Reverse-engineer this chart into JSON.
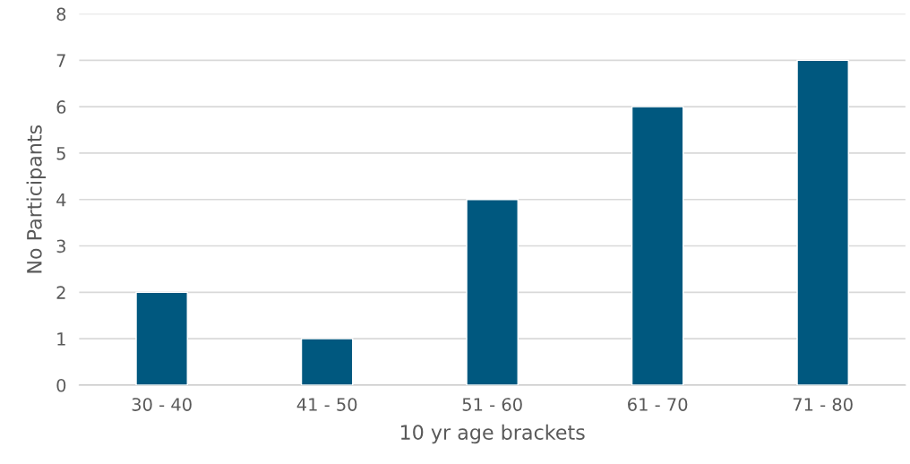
{
  "chart_data": {
    "type": "bar",
    "xlabel": "10 yr age brackets",
    "ylabel": "No Participants",
    "categories": [
      "30 - 40",
      "41 - 50",
      "51 - 60",
      "61 - 70",
      "71 - 80"
    ],
    "values": [
      2,
      1,
      4,
      6,
      7
    ],
    "color": "#00587f",
    "ylim": [
      0,
      8
    ],
    "yticks": [
      0,
      1,
      2,
      3,
      4,
      5,
      6,
      7,
      8
    ],
    "grid": "y"
  }
}
